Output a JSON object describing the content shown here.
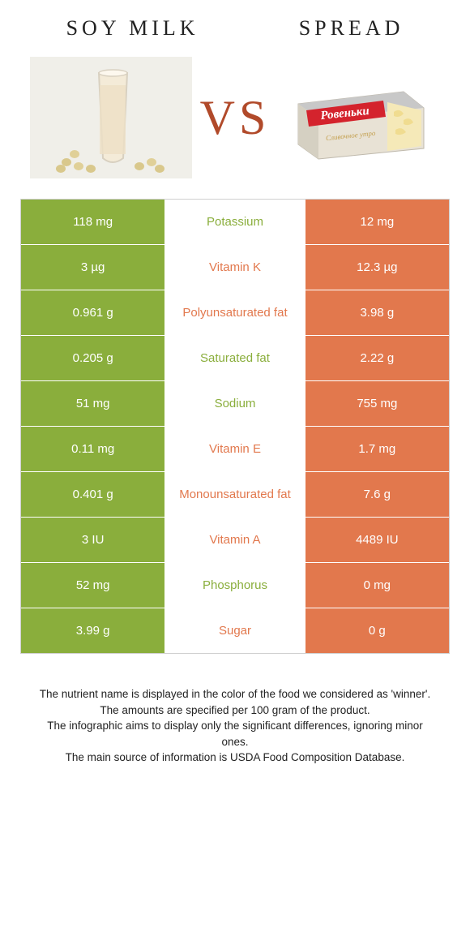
{
  "colors": {
    "left": "#8aae3c",
    "right": "#e2784d",
    "nutrient_left_text": "#8aae3c",
    "nutrient_right_text": "#e2784d"
  },
  "titles": {
    "left": "Soy milk",
    "right": "Spread"
  },
  "vs": "VS",
  "rows": [
    {
      "left": "118 mg",
      "nutrient": "Potassium",
      "right": "12 mg",
      "winner": "left"
    },
    {
      "left": "3 µg",
      "nutrient": "Vitamin K",
      "right": "12.3 µg",
      "winner": "right"
    },
    {
      "left": "0.961 g",
      "nutrient": "Polyunsaturated fat",
      "right": "3.98 g",
      "winner": "right"
    },
    {
      "left": "0.205 g",
      "nutrient": "Saturated fat",
      "right": "2.22 g",
      "winner": "left"
    },
    {
      "left": "51 mg",
      "nutrient": "Sodium",
      "right": "755 mg",
      "winner": "left"
    },
    {
      "left": "0.11 mg",
      "nutrient": "Vitamin E",
      "right": "1.7 mg",
      "winner": "right"
    },
    {
      "left": "0.401 g",
      "nutrient": "Monounsaturated fat",
      "right": "7.6 g",
      "winner": "right"
    },
    {
      "left": "3 IU",
      "nutrient": "Vitamin A",
      "right": "4489 IU",
      "winner": "right"
    },
    {
      "left": "52 mg",
      "nutrient": "Phosphorus",
      "right": "0 mg",
      "winner": "left"
    },
    {
      "left": "3.99 g",
      "nutrient": "Sugar",
      "right": "0 g",
      "winner": "right"
    }
  ],
  "footer": [
    "The nutrient name is displayed in the color of the food we considered as 'winner'.",
    "The amounts are specified per 100 gram of the product.",
    "The infographic aims to display only the significant differences, ignoring minor ones.",
    "The main source of information is USDA Food Composition Database."
  ]
}
